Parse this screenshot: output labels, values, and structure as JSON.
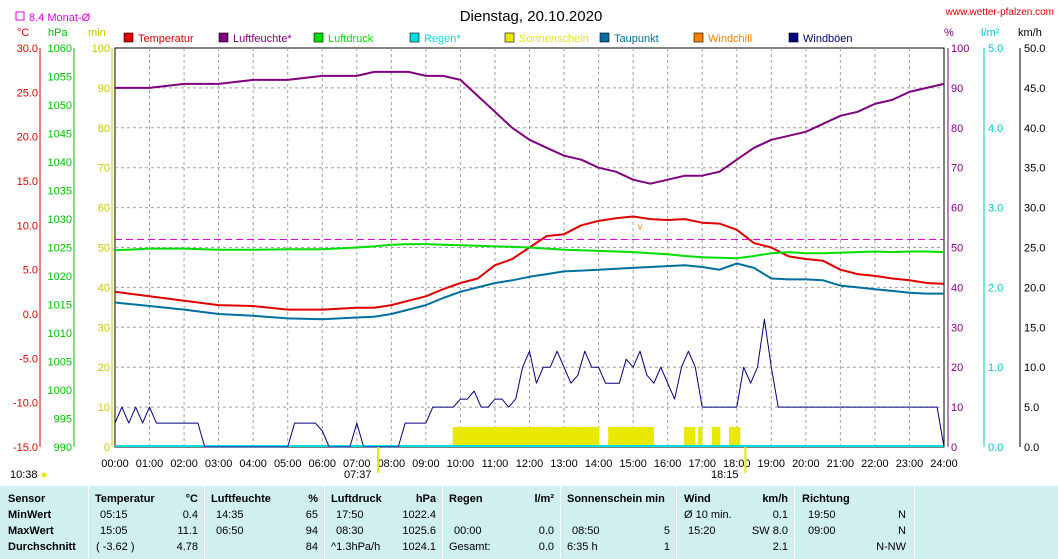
{
  "header": {
    "title": "Dienstag, 20.10.2020",
    "website": "www.wetter-pfalzen.com",
    "month_avg_label": "8.4 Monat-Ø",
    "footer_left_time": "10:38"
  },
  "units": {
    "temp": "°C",
    "pressure": "hPa",
    "sunshine": "min",
    "humidity": "%",
    "rain": "l/m²",
    "wind": "km/h"
  },
  "colors": {
    "temperature": "#e00000",
    "humidity": "#800080",
    "pressure": "#00e000",
    "rain": "#00e0e0",
    "sunshine": "#e8e800",
    "dewpoint": "#0070a0",
    "windchill": "#ff8000",
    "gust": "#000080",
    "monthavg": "#e000e0"
  },
  "legend": [
    {
      "key": "temperature",
      "label": "Temperatur"
    },
    {
      "key": "humidity",
      "label": "Luftfeuchte*"
    },
    {
      "key": "pressure",
      "label": "Luftdruck"
    },
    {
      "key": "rain",
      "label": "Regen*"
    },
    {
      "key": "sunshine",
      "label": "Sonnenschein"
    },
    {
      "key": "dewpoint",
      "label": "Taupunkt"
    },
    {
      "key": "windchill",
      "label": "Windchill"
    },
    {
      "key": "gust",
      "label": "Windböen"
    }
  ],
  "axis_markers": {
    "sunrise": "07:37",
    "sunset": "18:15"
  },
  "chart_data": {
    "type": "line",
    "x_ticks": [
      "00:00",
      "01:00",
      "02:00",
      "03:00",
      "04:00",
      "05:00",
      "06:00",
      "07:00",
      "08:00",
      "09:00",
      "10:00",
      "11:00",
      "12:00",
      "13:00",
      "14:00",
      "15:00",
      "16:00",
      "17:00",
      "18:00",
      "19:00",
      "20:00",
      "21:00",
      "22:00",
      "23:00",
      "24:00"
    ],
    "axes": {
      "temperature": {
        "unit": "°C",
        "ticks": [
          "30.0",
          "25.0",
          "20.0",
          "15.0",
          "10.0",
          "5.0",
          "0.0",
          "-5.0",
          "-10.0",
          "-15.0"
        ],
        "ylim": [
          -15,
          30
        ]
      },
      "pressure": {
        "unit": "hPa",
        "ticks": [
          "1060",
          "1055",
          "1050",
          "1045",
          "1040",
          "1035",
          "1030",
          "1025",
          "1020",
          "1015",
          "1010",
          "1005",
          "1000",
          "995",
          "990"
        ],
        "ylim": [
          990,
          1060
        ]
      },
      "sunshine": {
        "unit": "min",
        "ticks": [
          "100",
          "90",
          "80",
          "70",
          "60",
          "50",
          "40",
          "30",
          "20",
          "10",
          "0"
        ],
        "ylim": [
          0,
          100
        ]
      },
      "humidity": {
        "unit": "%",
        "ticks": [
          "100",
          "90",
          "80",
          "70",
          "60",
          "50",
          "40",
          "30",
          "20",
          "10",
          "0"
        ],
        "ylim": [
          0,
          100
        ]
      },
      "rain": {
        "unit": "l/m²",
        "ticks": [
          "5.0",
          "4.0",
          "3.0",
          "2.0",
          "1.0",
          "0.0"
        ],
        "ylim": [
          0,
          5
        ]
      },
      "wind": {
        "unit": "km/h",
        "ticks": [
          "50.0",
          "45.0",
          "40.0",
          "35.0",
          "30.0",
          "25.0",
          "20.0",
          "15.0",
          "10.0",
          "5.0",
          "0.0"
        ],
        "ylim": [
          0,
          50
        ]
      }
    },
    "month_avg_temp": 8.4,
    "series": [
      {
        "name": "Temperatur",
        "key": "temperature",
        "axis": "temperature",
        "x": [
          0,
          1,
          2,
          3,
          4,
          5,
          6,
          7,
          7.5,
          8,
          8.5,
          9,
          9.5,
          10,
          10.5,
          11,
          11.5,
          12,
          12.5,
          13,
          13.5,
          14,
          14.5,
          15,
          15.5,
          16,
          16.5,
          17,
          17.5,
          18,
          18.5,
          19,
          19.5,
          20,
          20.5,
          21,
          21.5,
          22,
          22.5,
          23,
          23.5,
          24
        ],
        "y": [
          2.5,
          2.0,
          1.5,
          1.0,
          0.9,
          0.5,
          0.5,
          0.7,
          0.7,
          1.0,
          1.5,
          2.0,
          2.8,
          3.5,
          4.0,
          5.5,
          6.2,
          7.5,
          8.8,
          9.0,
          10.0,
          10.5,
          10.8,
          11.0,
          10.7,
          10.6,
          10.7,
          10.3,
          10.2,
          9.5,
          8.0,
          7.5,
          6.5,
          6.2,
          6.0,
          5.0,
          4.5,
          4.3,
          4.0,
          3.8,
          3.5,
          3.4
        ]
      },
      {
        "name": "Luftfeuchte*",
        "key": "humidity",
        "axis": "humidity",
        "x": [
          0,
          1,
          2,
          3,
          4,
          5,
          6,
          7,
          7.5,
          8,
          8.5,
          9,
          9.5,
          10,
          10.5,
          11,
          11.5,
          12,
          12.5,
          13,
          13.5,
          14,
          14.5,
          15,
          15.5,
          16,
          16.5,
          17,
          17.5,
          18,
          18.5,
          19,
          19.5,
          20,
          20.5,
          21,
          21.5,
          22,
          22.5,
          23,
          23.5,
          24
        ],
        "y": [
          90,
          90,
          91,
          91,
          92,
          92,
          93,
          93,
          94,
          94,
          94,
          93,
          93,
          92,
          88,
          84,
          80,
          77,
          75,
          73,
          72,
          70,
          69,
          67,
          66,
          67,
          68,
          68,
          69,
          72,
          75,
          77,
          78,
          79,
          81,
          83,
          84,
          86,
          87,
          89,
          90,
          91
        ]
      },
      {
        "name": "Luftdruck",
        "key": "pressure",
        "axis": "pressure",
        "x": [
          0,
          1,
          2,
          3,
          4,
          5,
          6,
          7,
          7.5,
          8,
          8.5,
          9,
          9.5,
          10,
          10.5,
          11,
          11.5,
          12,
          12.5,
          13,
          13.5,
          14,
          14.5,
          15,
          15.5,
          16,
          16.5,
          17,
          17.5,
          18,
          18.5,
          19,
          19.5,
          20,
          20.5,
          21,
          21.5,
          22,
          22.5,
          23,
          23.5,
          24
        ],
        "y": [
          1024.5,
          1024.8,
          1024.8,
          1024.6,
          1024.6,
          1024.7,
          1024.7,
          1025.0,
          1025.2,
          1025.5,
          1025.6,
          1025.6,
          1025.5,
          1025.4,
          1025.3,
          1025.2,
          1025.1,
          1025.0,
          1024.8,
          1024.6,
          1024.5,
          1024.4,
          1024.3,
          1024.2,
          1024.0,
          1023.8,
          1023.5,
          1023.3,
          1023.2,
          1023.1,
          1023.5,
          1024.0,
          1024.2,
          1024.0,
          1024.0,
          1024.1,
          1024.2,
          1024.3,
          1024.2,
          1024.3,
          1024.3,
          1024.2
        ]
      },
      {
        "name": "Taupunkt",
        "key": "dewpoint",
        "axis": "temperature",
        "x": [
          0,
          1,
          2,
          3,
          4,
          5,
          6,
          7,
          7.5,
          8,
          8.5,
          9,
          9.5,
          10,
          10.5,
          11,
          11.5,
          12,
          12.5,
          13,
          13.5,
          14,
          14.5,
          15,
          15.5,
          16,
          16.5,
          17,
          17.5,
          18,
          18.5,
          19,
          19.5,
          20,
          20.5,
          21,
          21.5,
          22,
          22.5,
          23,
          23.5,
          24
        ],
        "y": [
          1.3,
          0.9,
          0.5,
          0.0,
          -0.2,
          -0.5,
          -0.6,
          -0.4,
          -0.3,
          0.0,
          0.5,
          1.0,
          1.8,
          2.5,
          3.0,
          3.5,
          3.8,
          4.2,
          4.5,
          4.8,
          4.9,
          5.0,
          5.1,
          5.2,
          5.3,
          5.4,
          5.5,
          5.3,
          5.0,
          5.7,
          5.2,
          4.0,
          3.9,
          3.9,
          3.8,
          3.2,
          3.0,
          2.8,
          2.6,
          2.4,
          2.3,
          2.3
        ]
      },
      {
        "name": "Windböen",
        "key": "gust",
        "axis": "wind",
        "x": [
          0,
          0.2,
          0.4,
          0.6,
          0.8,
          1,
          1.2,
          1.4,
          1.6,
          1.8,
          2,
          2.2,
          2.4,
          2.6,
          2.8,
          3,
          3.2,
          3.4,
          3.6,
          3.8,
          4,
          4.2,
          4.4,
          4.6,
          4.8,
          5,
          5.2,
          5.4,
          5.6,
          5.8,
          6,
          6.2,
          6.4,
          6.6,
          6.8,
          7,
          7.2,
          7.4,
          7.6,
          7.8,
          8,
          8.2,
          8.4,
          8.6,
          8.8,
          9,
          9.2,
          9.4,
          9.6,
          9.8,
          10,
          10.2,
          10.4,
          10.6,
          10.8,
          11,
          11.2,
          11.4,
          11.6,
          11.8,
          12,
          12.2,
          12.4,
          12.6,
          12.8,
          13,
          13.2,
          13.4,
          13.6,
          13.8,
          14,
          14.2,
          14.4,
          14.6,
          14.8,
          15,
          15.2,
          15.4,
          15.6,
          15.8,
          16,
          16.2,
          16.4,
          16.6,
          16.8,
          17,
          17.2,
          17.4,
          17.6,
          17.8,
          18,
          18.2,
          18.4,
          18.6,
          18.8,
          19,
          19.2,
          19.4,
          19.6,
          19.8,
          20,
          20.2,
          20.4,
          20.6,
          20.8,
          21,
          21.2,
          21.4,
          21.6,
          21.8,
          22,
          22.2,
          22.4,
          22.6,
          22.8,
          23,
          23.2,
          23.4,
          23.6,
          23.8,
          24
        ],
        "y": [
          3,
          5,
          3,
          5,
          3,
          5,
          3,
          3,
          3,
          3,
          3,
          3,
          3,
          0,
          0,
          0,
          0,
          0,
          0,
          0,
          0,
          0,
          0,
          0,
          0,
          0,
          3,
          3,
          3,
          3,
          2,
          0,
          0,
          0,
          0,
          3,
          0,
          0,
          0,
          0,
          0,
          0,
          3,
          3,
          3,
          3,
          5,
          5,
          5,
          5,
          6,
          6,
          7,
          5,
          5,
          6,
          6,
          5,
          6,
          10,
          12,
          8,
          10,
          10,
          12,
          10,
          8,
          9,
          12,
          10,
          10,
          8,
          8,
          8,
          11,
          10,
          12,
          9,
          8,
          10,
          8,
          6,
          10,
          12,
          10,
          5,
          5,
          5,
          5,
          5,
          5,
          10,
          8,
          10,
          16,
          10,
          5,
          5,
          5,
          5,
          5,
          5,
          5,
          5,
          5,
          5,
          5,
          5,
          5,
          5,
          5,
          5,
          5,
          5,
          5,
          5,
          5,
          5,
          5,
          5,
          0
        ]
      }
    ],
    "sunshine_bars": {
      "name": "Sonnenschein",
      "key": "sunshine",
      "axis": "sunshine",
      "ranges": [
        [
          9.8,
          14.0
        ],
        [
          14.3,
          15.6
        ],
        [
          16.5,
          16.8
        ],
        [
          16.9,
          17.0
        ],
        [
          17.3,
          17.5
        ],
        [
          17.8,
          18.1
        ]
      ],
      "level": 5
    },
    "windchill_points": {
      "name": "Windchill",
      "key": "windchill",
      "axis": "temperature",
      "x": [
        15.2
      ],
      "y": [
        10.0
      ]
    }
  },
  "stats": {
    "headers": {
      "sensor": "Sensor",
      "temp": "Temperatur",
      "temp_unit": "°C",
      "hum": "Luftfeuchte",
      "hum_unit": "%",
      "press": "Luftdruck",
      "press_unit": "hPa",
      "rain": "Regen",
      "rain_unit": "l/m²",
      "sun": "Sonnenschein min",
      "wind": "Wind",
      "wind_unit": "km/h",
      "dir": "Richtung"
    },
    "rows": [
      {
        "label": "MinWert",
        "temp_time": "05:15",
        "temp_val": "0.4",
        "hum_time": "14:35",
        "hum_val": "65",
        "press_time": "17:50",
        "press_val": "1022.4",
        "rain_time": "",
        "rain_val": "",
        "sun_time": "",
        "sun_val": "",
        "wind_time": "Ø 10 min.",
        "wind_val": "0.1",
        "dir_time": "19:50",
        "dir_val": "N"
      },
      {
        "label": "MaxWert",
        "temp_time": "15:05",
        "temp_val": "11.1",
        "hum_time": "06:50",
        "hum_val": "94",
        "press_time": "08:30",
        "press_val": "1025.6",
        "rain_time": "00:00",
        "rain_val": "0.0",
        "sun_time": "08:50",
        "sun_val": "5",
        "wind_time": "15:20",
        "wind_val": "SW 8.0",
        "dir_time": "09:00",
        "dir_val": "N"
      },
      {
        "label": "Durchschnitt",
        "temp_time": "( -3.62 )",
        "temp_val": "4.78",
        "hum_time": "",
        "hum_val": "84",
        "press_time": "^1.3hPa/h",
        "press_val": "1024.1",
        "rain_time": "Gesamt:",
        "rain_val": "0.0",
        "sun_time": "6:35 h",
        "sun_val": "1",
        "wind_time": "",
        "wind_val": "2.1",
        "dir_time": "",
        "dir_val": "N-NW"
      }
    ]
  }
}
